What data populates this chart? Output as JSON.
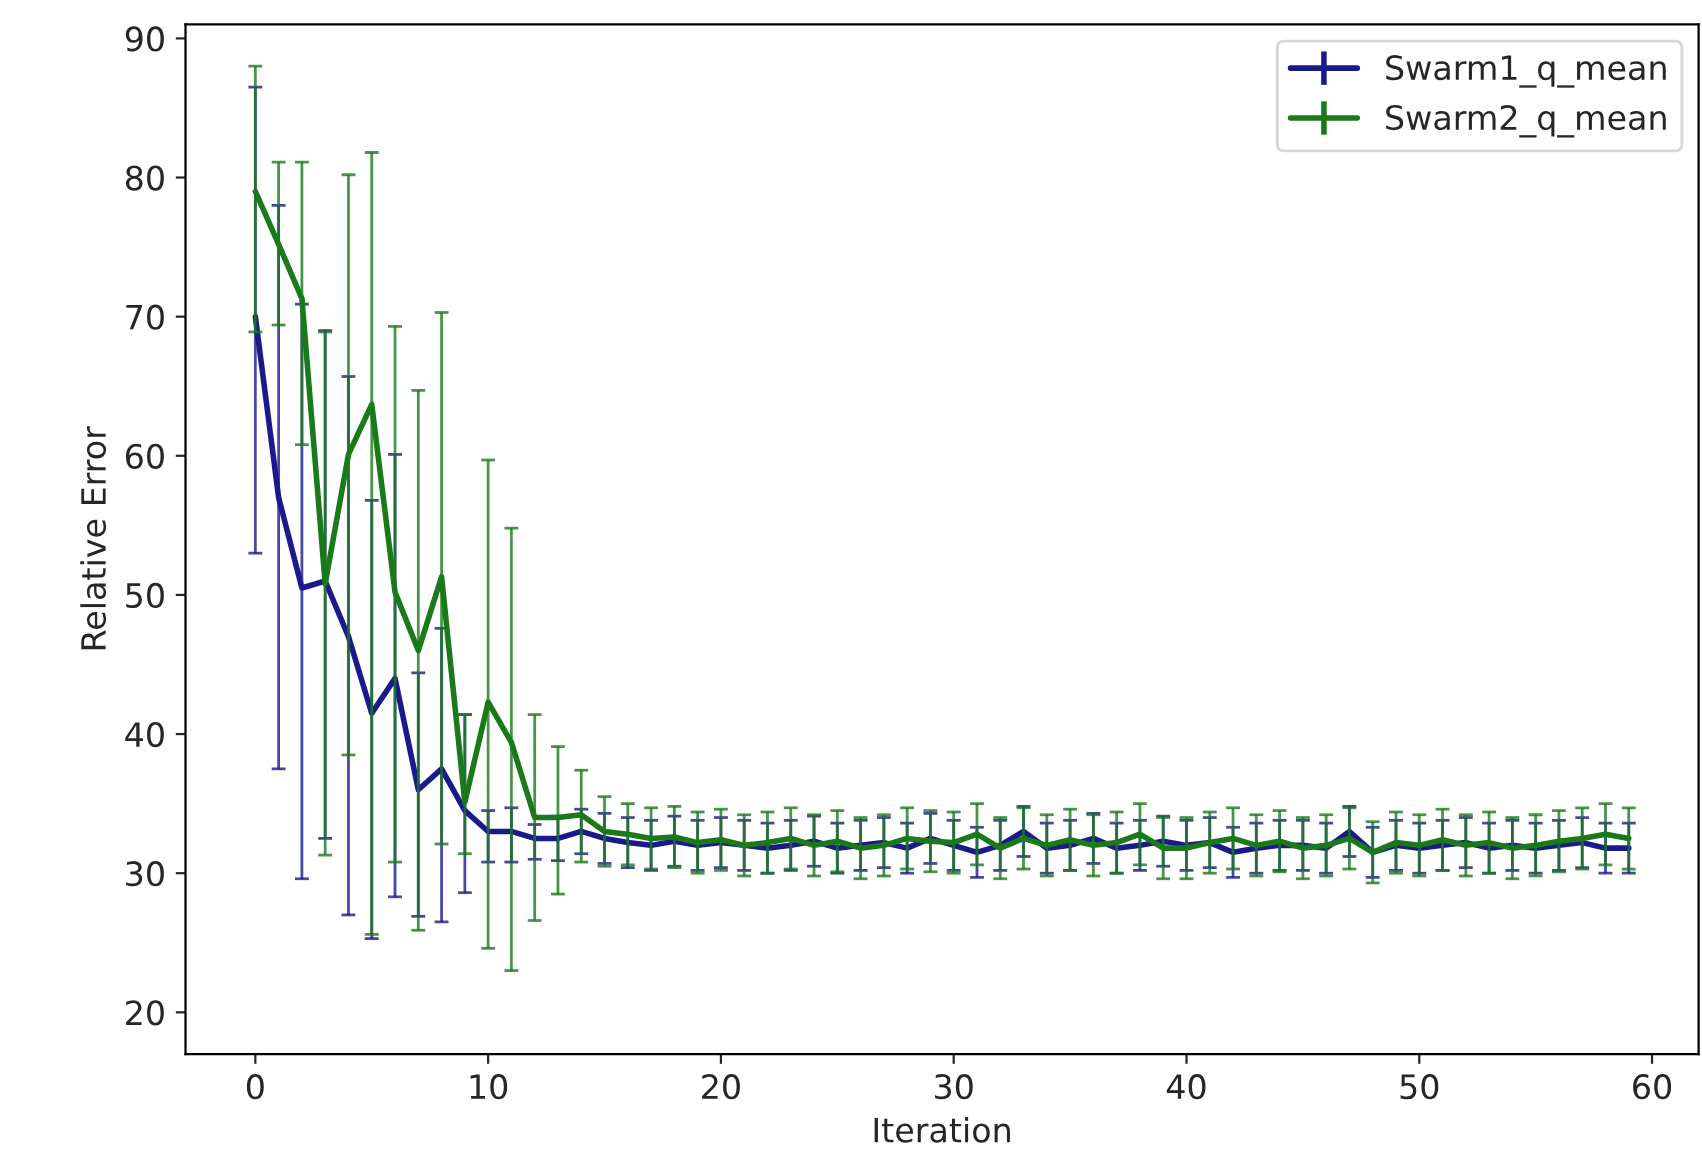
{
  "chart_data": {
    "type": "line",
    "xlabel": "Iteration",
    "ylabel": "Relative Error",
    "x": [
      0,
      1,
      2,
      3,
      4,
      5,
      6,
      7,
      8,
      9,
      10,
      11,
      12,
      13,
      14,
      15,
      16,
      17,
      18,
      19,
      20,
      21,
      22,
      23,
      24,
      25,
      26,
      27,
      28,
      29,
      30,
      31,
      32,
      33,
      34,
      35,
      36,
      37,
      38,
      39,
      40,
      41,
      42,
      43,
      44,
      45,
      46,
      47,
      48,
      49,
      50,
      51,
      52,
      53,
      54,
      55,
      56,
      57,
      58,
      59
    ],
    "xlim": [
      -3,
      62
    ],
    "xticks": [
      0,
      10,
      20,
      30,
      40,
      50,
      60
    ],
    "ylim": [
      17,
      91
    ],
    "yticks": [
      20,
      30,
      40,
      50,
      60,
      70,
      80,
      90
    ],
    "grid": false,
    "legend": "top right",
    "series": [
      {
        "name": "Swarm1_q_mean",
        "color": "#1a1a8c",
        "values": [
          70,
          57,
          50.5,
          51,
          47,
          41.5,
          44,
          36,
          37.5,
          34.5,
          33,
          33,
          32.5,
          32.5,
          33,
          32.5,
          32.2,
          32,
          32.3,
          32,
          32.2,
          32,
          31.8,
          32,
          32.3,
          31.8,
          32,
          32.2,
          31.8,
          32.5,
          32,
          31.5,
          32,
          33,
          31.8,
          32,
          32.5,
          31.8,
          32,
          32.3,
          32,
          32.2,
          31.5,
          31.8,
          32,
          32,
          31.8,
          33,
          31.5,
          32,
          31.8,
          32,
          32.2,
          31.8,
          32,
          31.8,
          32,
          32.2,
          31.8,
          31.8
        ],
        "errors": [
          [
            53,
            86.5
          ],
          [
            37.5,
            78
          ],
          [
            29.6,
            70.9
          ],
          [
            32.5,
            69
          ],
          [
            27,
            65.7
          ],
          [
            25.3,
            56.8
          ],
          [
            28.3,
            60.1
          ],
          [
            26.9,
            44.4
          ],
          [
            26.5,
            47.6
          ],
          [
            28.6,
            41.4
          ],
          [
            30.8,
            34.5
          ],
          [
            30.8,
            34.7
          ],
          [
            31,
            33.5
          ],
          1.6,
          1.6,
          1.8,
          1.8,
          1.8,
          1.8,
          1.8,
          1.8,
          1.8,
          1.8,
          1.8,
          1.8,
          1.8,
          1.8,
          1.8,
          1.8,
          1.8,
          1.8,
          1.8,
          1.8,
          1.8,
          1.8,
          1.8,
          1.8,
          1.8,
          1.8,
          1.8,
          1.8,
          1.8,
          1.8,
          1.8,
          1.8,
          1.8,
          1.8,
          1.8,
          1.8,
          1.8,
          1.8,
          1.8,
          1.8,
          1.8,
          1.8,
          1.8,
          1.8,
          1.8,
          1.8,
          1.8
        ]
      },
      {
        "name": "Swarm2_q_mean",
        "color": "#1a7a1a",
        "values": [
          79,
          75.2,
          71.3,
          50.8,
          60.1,
          63.7,
          50.2,
          46,
          51.3,
          35.1,
          42.3,
          39.4,
          34,
          34,
          34.2,
          33,
          32.8,
          32.5,
          32.6,
          32.2,
          32.4,
          32,
          32.2,
          32.5,
          32,
          32.3,
          31.8,
          32,
          32.5,
          32.3,
          32.2,
          32.8,
          31.8,
          32.5,
          32,
          32.4,
          32,
          32.2,
          32.8,
          31.8,
          31.8,
          32.2,
          32.5,
          32,
          32.3,
          31.8,
          32,
          32.5,
          31.5,
          32.2,
          32,
          32.4,
          32,
          32.2,
          31.8,
          32,
          32.3,
          32.5,
          32.8,
          32.5
        ],
        "errors": [
          [
            68.9,
            88
          ],
          [
            69.4,
            81.1
          ],
          [
            60.8,
            81.1
          ],
          [
            31.3,
            68.9
          ],
          [
            38.5,
            80.2
          ],
          [
            25.6,
            81.8
          ],
          [
            30.8,
            69.3
          ],
          [
            25.9,
            64.7
          ],
          [
            32.1,
            70.3
          ],
          [
            31.4,
            41.4
          ],
          [
            24.6,
            59.7
          ],
          [
            23,
            54.8
          ],
          [
            26.6,
            41.4
          ],
          [
            28.5,
            39.1
          ],
          [
            30.8,
            37.4
          ],
          2.5,
          2.2,
          2.2,
          2.2,
          2.2,
          2.2,
          2.2,
          2.2,
          2.2,
          2.2,
          2.2,
          2.2,
          2.2,
          2.2,
          2.2,
          2.2,
          2.2,
          2.2,
          2.2,
          2.2,
          2.2,
          2.2,
          2.2,
          2.2,
          2.2,
          2.2,
          2.2,
          2.2,
          2.2,
          2.2,
          2.2,
          2.2,
          2.2,
          2.2,
          2.2,
          2.2,
          2.2,
          2.2,
          2.2,
          2.2,
          2.2,
          2.2,
          2.2,
          2.2,
          2.2
        ]
      }
    ]
  }
}
